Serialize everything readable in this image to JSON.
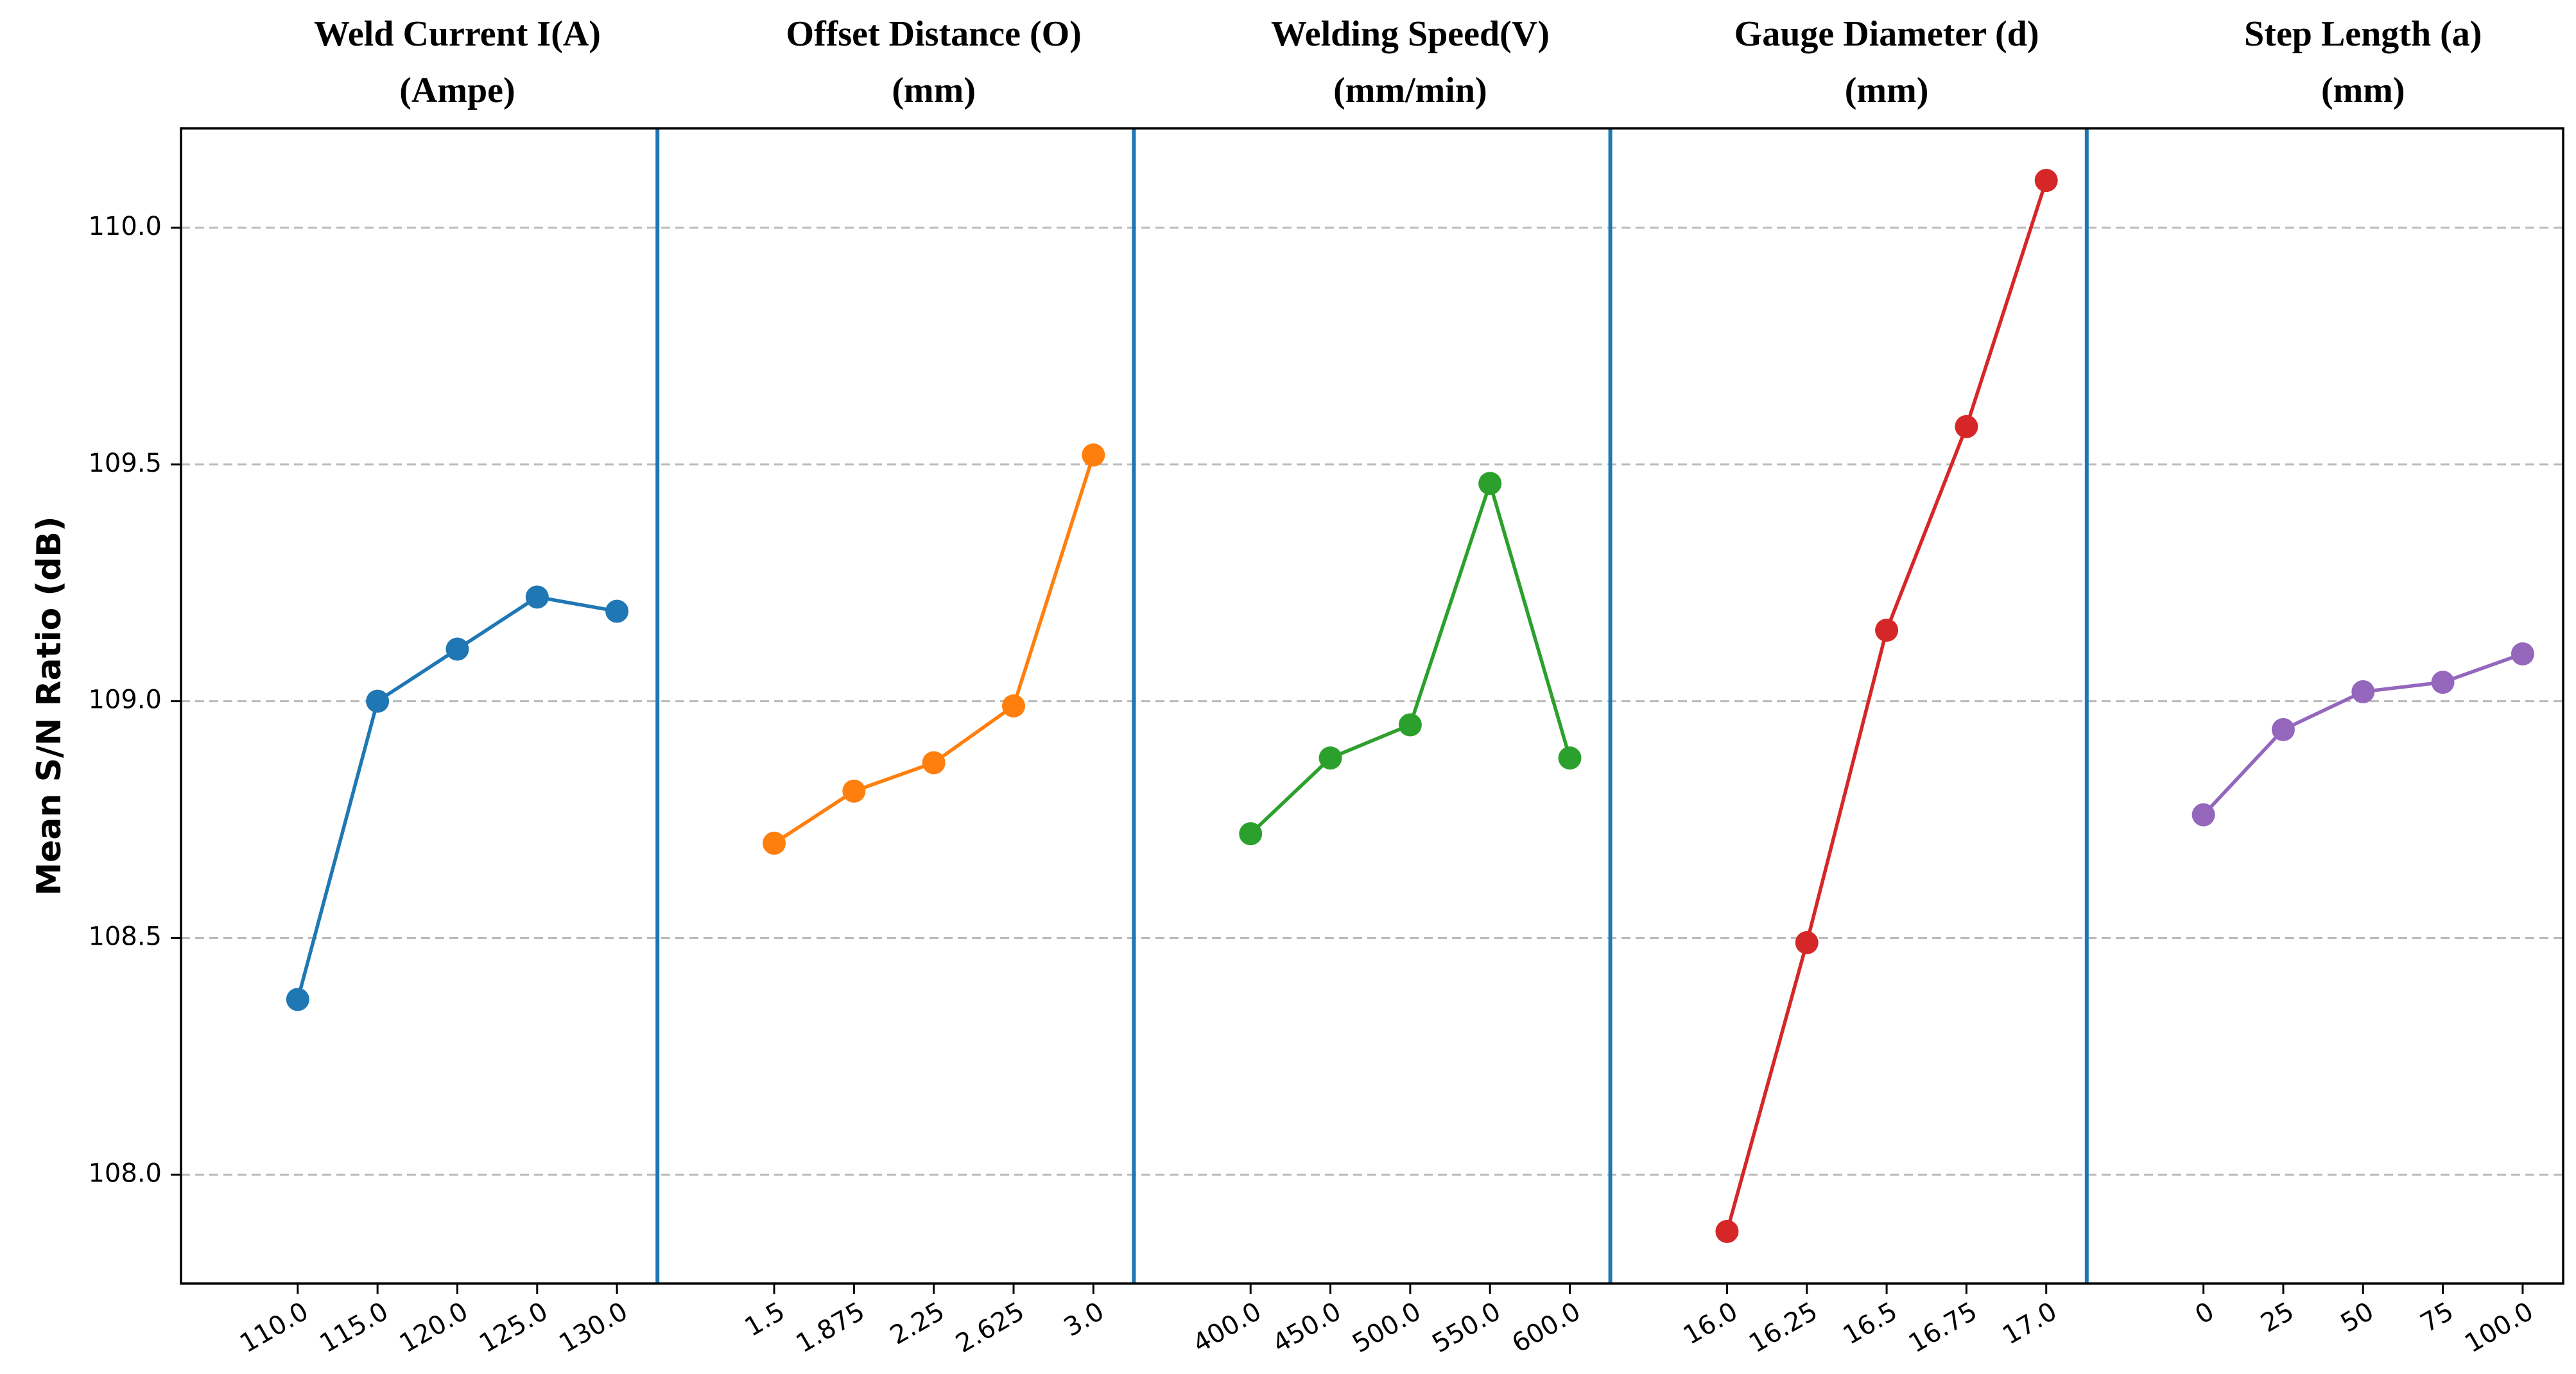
{
  "chart_data": {
    "type": "line",
    "ylabel": "Mean S/N Ratio (dB)",
    "ylim": [
      107.77,
      110.21
    ],
    "yticks": [
      {
        "value": 108,
        "label": "108.0"
      },
      108.5,
      {
        "value": 109,
        "label": "109.0"
      },
      109.5,
      {
        "value": 110,
        "label": "110.0"
      }
    ],
    "grid": true,
    "divider_color": "#1f77b4",
    "panels": [
      {
        "title": [
          "Weld Current I(A)",
          "(Ampe)"
        ],
        "categories": [
          "110.0",
          "115.0",
          "120.0",
          "125.0",
          "130.0"
        ],
        "series": [
          {
            "color": "#1f77b4",
            "values": [
              108.37,
              109.0,
              109.11,
              109.22,
              109.19
            ]
          }
        ]
      },
      {
        "title": [
          "Offset Distance (O)",
          "(mm)"
        ],
        "categories": [
          "1.5",
          "1.875",
          "2.25",
          "2.625",
          "3.0"
        ],
        "series": [
          {
            "color": "#ff7f0e",
            "values": [
              108.7,
              108.81,
              108.87,
              108.99,
              109.52
            ]
          }
        ]
      },
      {
        "title": [
          "Welding Speed(V)",
          "(mm/min)"
        ],
        "categories": [
          "400.0",
          "450.0",
          "500.0",
          "550.0",
          "600.0"
        ],
        "series": [
          {
            "color": "#2ca02c",
            "values": [
              108.72,
              108.88,
              108.95,
              109.46,
              108.88
            ]
          }
        ]
      },
      {
        "title": [
          "Gauge Diameter (d)",
          "(mm)"
        ],
        "categories": [
          "16.0",
          "16.25",
          "16.5",
          "16.75",
          "17.0"
        ],
        "series": [
          {
            "color": "#d62728",
            "values": [
              107.88,
              108.49,
              109.15,
              109.58,
              110.1
            ]
          }
        ]
      },
      {
        "title": [
          "Step Length (a)",
          "(mm)"
        ],
        "categories": [
          "0",
          "25",
          "50",
          "75",
          "100.0"
        ],
        "series": [
          {
            "color": "#9467bd",
            "values": [
              108.76,
              108.94,
              109.02,
              109.04,
              109.1
            ]
          }
        ]
      }
    ]
  }
}
